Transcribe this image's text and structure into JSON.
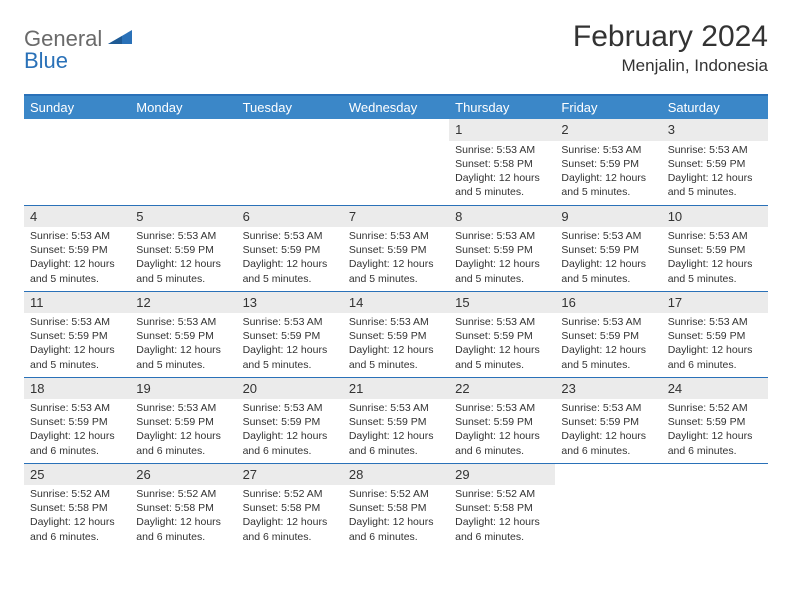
{
  "logo": {
    "part1": "General",
    "part2": "Blue"
  },
  "header": {
    "month_title": "February 2024",
    "location": "Menjalin, Indonesia"
  },
  "colors": {
    "brand_blue": "#2a71b8",
    "header_bg": "#3b87c8",
    "daynum_bg": "#ebebeb",
    "text": "#333333",
    "logo_gray": "#6a6a6a",
    "page_bg": "#ffffff"
  },
  "typography": {
    "month_title_pt": 30,
    "location_pt": 17,
    "dayheader_pt": 13,
    "body_pt": 10.5,
    "font_family": "Arial"
  },
  "day_headers": [
    "Sunday",
    "Monday",
    "Tuesday",
    "Wednesday",
    "Thursday",
    "Friday",
    "Saturday"
  ],
  "weeks": [
    [
      {
        "empty": true
      },
      {
        "empty": true
      },
      {
        "empty": true
      },
      {
        "empty": true
      },
      {
        "n": "1",
        "sunrise": "Sunrise: 5:53 AM",
        "sunset": "Sunset: 5:58 PM",
        "daylight": "Daylight: 12 hours and 5 minutes."
      },
      {
        "n": "2",
        "sunrise": "Sunrise: 5:53 AM",
        "sunset": "Sunset: 5:59 PM",
        "daylight": "Daylight: 12 hours and 5 minutes."
      },
      {
        "n": "3",
        "sunrise": "Sunrise: 5:53 AM",
        "sunset": "Sunset: 5:59 PM",
        "daylight": "Daylight: 12 hours and 5 minutes."
      }
    ],
    [
      {
        "n": "4",
        "sunrise": "Sunrise: 5:53 AM",
        "sunset": "Sunset: 5:59 PM",
        "daylight": "Daylight: 12 hours and 5 minutes."
      },
      {
        "n": "5",
        "sunrise": "Sunrise: 5:53 AM",
        "sunset": "Sunset: 5:59 PM",
        "daylight": "Daylight: 12 hours and 5 minutes."
      },
      {
        "n": "6",
        "sunrise": "Sunrise: 5:53 AM",
        "sunset": "Sunset: 5:59 PM",
        "daylight": "Daylight: 12 hours and 5 minutes."
      },
      {
        "n": "7",
        "sunrise": "Sunrise: 5:53 AM",
        "sunset": "Sunset: 5:59 PM",
        "daylight": "Daylight: 12 hours and 5 minutes."
      },
      {
        "n": "8",
        "sunrise": "Sunrise: 5:53 AM",
        "sunset": "Sunset: 5:59 PM",
        "daylight": "Daylight: 12 hours and 5 minutes."
      },
      {
        "n": "9",
        "sunrise": "Sunrise: 5:53 AM",
        "sunset": "Sunset: 5:59 PM",
        "daylight": "Daylight: 12 hours and 5 minutes."
      },
      {
        "n": "10",
        "sunrise": "Sunrise: 5:53 AM",
        "sunset": "Sunset: 5:59 PM",
        "daylight": "Daylight: 12 hours and 5 minutes."
      }
    ],
    [
      {
        "n": "11",
        "sunrise": "Sunrise: 5:53 AM",
        "sunset": "Sunset: 5:59 PM",
        "daylight": "Daylight: 12 hours and 5 minutes."
      },
      {
        "n": "12",
        "sunrise": "Sunrise: 5:53 AM",
        "sunset": "Sunset: 5:59 PM",
        "daylight": "Daylight: 12 hours and 5 minutes."
      },
      {
        "n": "13",
        "sunrise": "Sunrise: 5:53 AM",
        "sunset": "Sunset: 5:59 PM",
        "daylight": "Daylight: 12 hours and 5 minutes."
      },
      {
        "n": "14",
        "sunrise": "Sunrise: 5:53 AM",
        "sunset": "Sunset: 5:59 PM",
        "daylight": "Daylight: 12 hours and 5 minutes."
      },
      {
        "n": "15",
        "sunrise": "Sunrise: 5:53 AM",
        "sunset": "Sunset: 5:59 PM",
        "daylight": "Daylight: 12 hours and 5 minutes."
      },
      {
        "n": "16",
        "sunrise": "Sunrise: 5:53 AM",
        "sunset": "Sunset: 5:59 PM",
        "daylight": "Daylight: 12 hours and 5 minutes."
      },
      {
        "n": "17",
        "sunrise": "Sunrise: 5:53 AM",
        "sunset": "Sunset: 5:59 PM",
        "daylight": "Daylight: 12 hours and 6 minutes."
      }
    ],
    [
      {
        "n": "18",
        "sunrise": "Sunrise: 5:53 AM",
        "sunset": "Sunset: 5:59 PM",
        "daylight": "Daylight: 12 hours and 6 minutes."
      },
      {
        "n": "19",
        "sunrise": "Sunrise: 5:53 AM",
        "sunset": "Sunset: 5:59 PM",
        "daylight": "Daylight: 12 hours and 6 minutes."
      },
      {
        "n": "20",
        "sunrise": "Sunrise: 5:53 AM",
        "sunset": "Sunset: 5:59 PM",
        "daylight": "Daylight: 12 hours and 6 minutes."
      },
      {
        "n": "21",
        "sunrise": "Sunrise: 5:53 AM",
        "sunset": "Sunset: 5:59 PM",
        "daylight": "Daylight: 12 hours and 6 minutes."
      },
      {
        "n": "22",
        "sunrise": "Sunrise: 5:53 AM",
        "sunset": "Sunset: 5:59 PM",
        "daylight": "Daylight: 12 hours and 6 minutes."
      },
      {
        "n": "23",
        "sunrise": "Sunrise: 5:53 AM",
        "sunset": "Sunset: 5:59 PM",
        "daylight": "Daylight: 12 hours and 6 minutes."
      },
      {
        "n": "24",
        "sunrise": "Sunrise: 5:52 AM",
        "sunset": "Sunset: 5:59 PM",
        "daylight": "Daylight: 12 hours and 6 minutes."
      }
    ],
    [
      {
        "n": "25",
        "sunrise": "Sunrise: 5:52 AM",
        "sunset": "Sunset: 5:58 PM",
        "daylight": "Daylight: 12 hours and 6 minutes."
      },
      {
        "n": "26",
        "sunrise": "Sunrise: 5:52 AM",
        "sunset": "Sunset: 5:58 PM",
        "daylight": "Daylight: 12 hours and 6 minutes."
      },
      {
        "n": "27",
        "sunrise": "Sunrise: 5:52 AM",
        "sunset": "Sunset: 5:58 PM",
        "daylight": "Daylight: 12 hours and 6 minutes."
      },
      {
        "n": "28",
        "sunrise": "Sunrise: 5:52 AM",
        "sunset": "Sunset: 5:58 PM",
        "daylight": "Daylight: 12 hours and 6 minutes."
      },
      {
        "n": "29",
        "sunrise": "Sunrise: 5:52 AM",
        "sunset": "Sunset: 5:58 PM",
        "daylight": "Daylight: 12 hours and 6 minutes."
      },
      {
        "empty": true
      },
      {
        "empty": true
      }
    ]
  ]
}
